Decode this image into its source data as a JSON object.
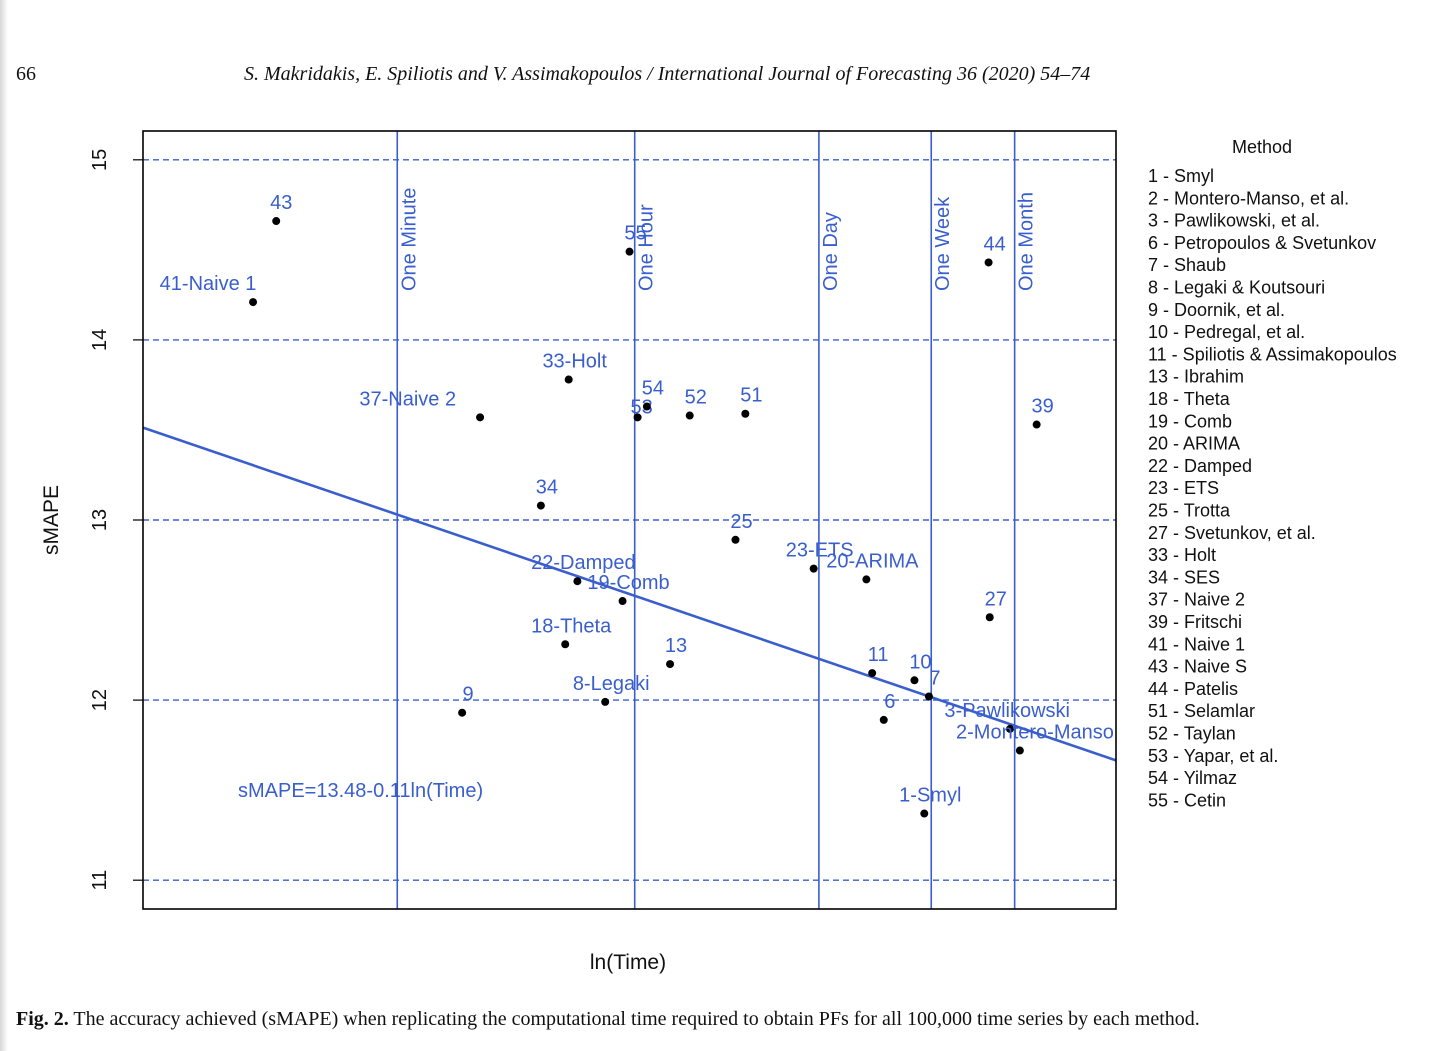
{
  "header": {
    "page_number": "66",
    "running_head": "S. Makridakis, E. Spiliotis and V. Assimakopoulos / International Journal of Forecasting 36 (2020) 54–74"
  },
  "caption": {
    "label": "Fig. 2.",
    "text": "The accuracy achieved (sMAPE) when replicating the computational time required to obtain PFs for all 100,000 time series by each method."
  },
  "chart_data": {
    "type": "scatter",
    "xlabel": "ln(Time)",
    "ylabel": "sMAPE",
    "ylim": [
      10.84,
      15.16
    ],
    "y_ticks": [
      "11",
      "12",
      "13",
      "14",
      "15"
    ],
    "x_ticks": [],
    "grid": "horizontal dashed at y ticks",
    "reference_lines": [
      {
        "label": "One Minute",
        "x": 4.09
      },
      {
        "label": "One Hour",
        "x": 8.19
      },
      {
        "label": "One Day",
        "x": 11.37
      },
      {
        "label": "One Week",
        "x": 13.31
      },
      {
        "label": "One Month",
        "x": 14.75
      }
    ],
    "regression": {
      "equation": "sMAPE=13.48-0.11ln(Time)",
      "intercept": 13.48,
      "slope": -0.11
    },
    "points": [
      {
        "label": "43",
        "x": 2.0,
        "y": 14.66
      },
      {
        "label": "41-Naive 1",
        "x": 1.6,
        "y": 14.21
      },
      {
        "label": "55",
        "x": 8.1,
        "y": 14.49
      },
      {
        "label": "44",
        "x": 14.3,
        "y": 14.43
      },
      {
        "label": "33-Holt",
        "x": 7.05,
        "y": 13.78
      },
      {
        "label": "37-Naive 2",
        "x": 5.52,
        "y": 13.57
      },
      {
        "label": "53",
        "x": 8.24,
        "y": 13.57
      },
      {
        "label": "54",
        "x": 8.4,
        "y": 13.63
      },
      {
        "label": "52",
        "x": 9.14,
        "y": 13.58
      },
      {
        "label": "51",
        "x": 10.1,
        "y": 13.59
      },
      {
        "label": "39",
        "x": 15.13,
        "y": 13.53
      },
      {
        "label": "34",
        "x": 6.57,
        "y": 13.08
      },
      {
        "label": "25",
        "x": 9.93,
        "y": 12.89
      },
      {
        "label": "23-ETS",
        "x": 11.28,
        "y": 12.73
      },
      {
        "label": "20-ARIMA",
        "x": 12.19,
        "y": 12.67
      },
      {
        "label": "22-Damped",
        "x": 7.2,
        "y": 12.66
      },
      {
        "label": "19-Comb",
        "x": 7.98,
        "y": 12.55
      },
      {
        "label": "27",
        "x": 14.32,
        "y": 12.46
      },
      {
        "label": "18-Theta",
        "x": 6.99,
        "y": 12.31
      },
      {
        "label": "13",
        "x": 8.8,
        "y": 12.2
      },
      {
        "label": "11",
        "x": 12.29,
        "y": 12.15
      },
      {
        "label": "10",
        "x": 13.02,
        "y": 12.11
      },
      {
        "label": "7",
        "x": 13.27,
        "y": 12.02
      },
      {
        "label": "8-Legaki",
        "x": 7.68,
        "y": 11.99
      },
      {
        "label": "9",
        "x": 5.21,
        "y": 11.93
      },
      {
        "label": "6",
        "x": 12.49,
        "y": 11.89
      },
      {
        "label": "3-Pawlikowski",
        "x": 14.67,
        "y": 11.84
      },
      {
        "label": "2-Montero-Manso",
        "x": 14.84,
        "y": 11.72
      },
      {
        "label": "1-Smyl",
        "x": 13.19,
        "y": 11.37
      }
    ],
    "legend": {
      "title": "Method",
      "placement": "right, outside plot",
      "items": [
        "1 - Smyl",
        "2 - Montero-Manso, et al.",
        "3 - Pawlikowski, et al.",
        "6 - Petropoulos & Svetunkov",
        "7 - Shaub",
        "8 - Legaki  & Koutsouri",
        "9 - Doornik, et al.",
        "10 - Pedregal, et al.",
        "11 - Spiliotis & Assimakopoulos",
        "13 - Ibrahim",
        "18 - Theta",
        "19 - Comb",
        "20 - ARIMA",
        "22 - Damped",
        "23 - ETS",
        "25 - Trotta",
        "27 - Svetunkov, et al.",
        "33 - Holt",
        "34 - SES",
        "37 - Naive 2",
        "39 - Fritschi",
        "41 - Naive 1",
        "43 - Naive S",
        "44 - Patelis",
        "51 - Selamlar",
        "52 - Taylan",
        "53 - Yapar, et al.",
        "54 - Yilmaz",
        "55 - Cetin"
      ]
    },
    "colors": {
      "accent": "#3a5fcd",
      "points": "#000000",
      "frame": "#000000"
    }
  }
}
